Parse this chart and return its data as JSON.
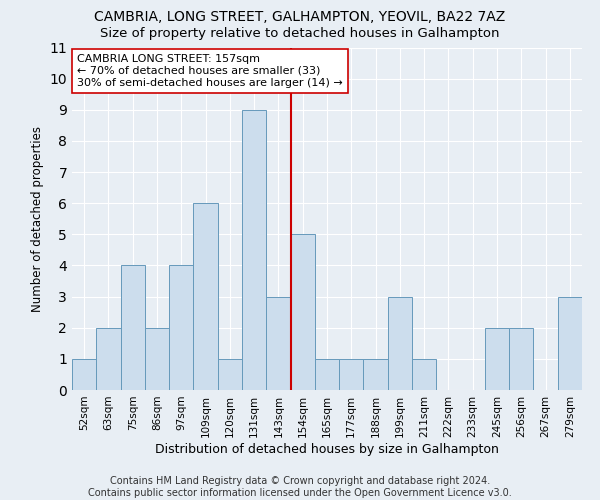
{
  "title": "CAMBRIA, LONG STREET, GALHAMPTON, YEOVIL, BA22 7AZ",
  "subtitle": "Size of property relative to detached houses in Galhampton",
  "xlabel": "Distribution of detached houses by size in Galhampton",
  "ylabel": "Number of detached properties",
  "bar_labels": [
    "52sqm",
    "63sqm",
    "75sqm",
    "86sqm",
    "97sqm",
    "109sqm",
    "120sqm",
    "131sqm",
    "143sqm",
    "154sqm",
    "165sqm",
    "177sqm",
    "188sqm",
    "199sqm",
    "211sqm",
    "222sqm",
    "233sqm",
    "245sqm",
    "256sqm",
    "267sqm",
    "279sqm"
  ],
  "bar_values": [
    1,
    2,
    4,
    2,
    4,
    6,
    1,
    9,
    3,
    5,
    1,
    1,
    1,
    3,
    1,
    0,
    0,
    2,
    2,
    0,
    3
  ],
  "bar_color": "#ccdded",
  "bar_edge_color": "#6699bb",
  "property_line_x": 8.5,
  "property_line_color": "#cc0000",
  "annotation_line1": "CAMBRIA LONG STREET: 157sqm",
  "annotation_line2": "← 70% of detached houses are smaller (33)",
  "annotation_line3": "30% of semi-detached houses are larger (14) →",
  "annotation_box_color": "#ffffff",
  "annotation_box_edge": "#cc0000",
  "ylim": [
    0,
    11
  ],
  "yticks": [
    0,
    1,
    2,
    3,
    4,
    5,
    6,
    7,
    8,
    9,
    10,
    11
  ],
  "footnote": "Contains HM Land Registry data © Crown copyright and database right 2024.\nContains public sector information licensed under the Open Government Licence v3.0.",
  "background_color": "#e8eef4",
  "plot_bg_color": "#e8eef4",
  "grid_color": "#ffffff",
  "title_fontsize": 10,
  "subtitle_fontsize": 9.5,
  "annotation_fontsize": 8,
  "footnote_fontsize": 7,
  "ylabel_fontsize": 8.5,
  "xlabel_fontsize": 9,
  "tick_fontsize": 7.5
}
